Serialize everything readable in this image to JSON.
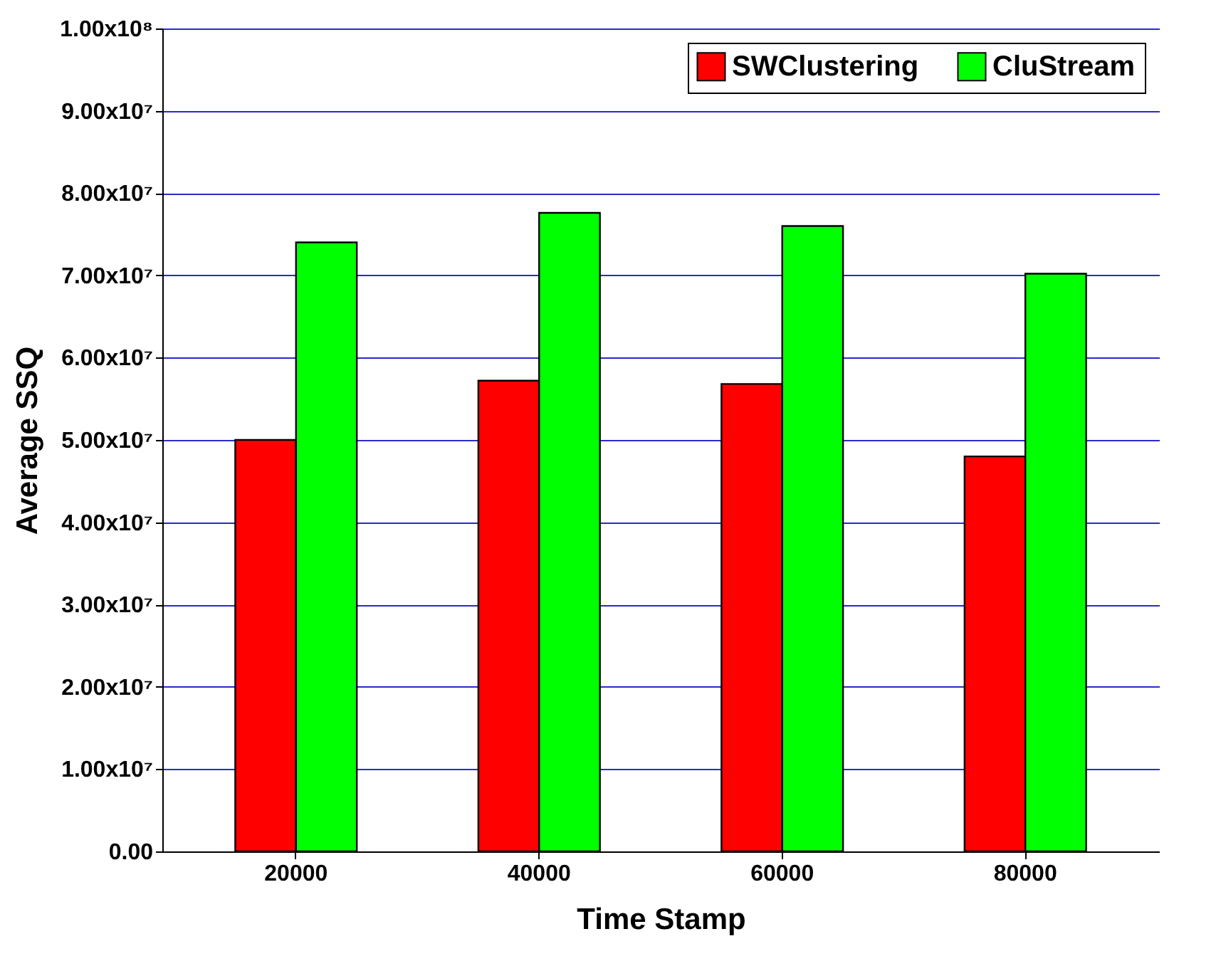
{
  "chart_data": {
    "type": "bar",
    "xlabel": "Time Stamp",
    "ylabel": "Average SSQ",
    "categories": [
      "20000",
      "40000",
      "60000",
      "80000"
    ],
    "series": [
      {
        "name": "SWClustering",
        "color": "#ff0000",
        "values": [
          50000000,
          57200000,
          56800000,
          48000000
        ]
      },
      {
        "name": "CluStream",
        "color": "#00ff00",
        "values": [
          74000000,
          77600000,
          76000000,
          70200000
        ]
      }
    ],
    "ylim": [
      0,
      100000000
    ],
    "yticks": [
      {
        "value": 0,
        "label": "0.00"
      },
      {
        "value": 10000000,
        "label": "1.00x10⁷"
      },
      {
        "value": 20000000,
        "label": "2.00x10⁷"
      },
      {
        "value": 30000000,
        "label": "3.00x10⁷"
      },
      {
        "value": 40000000,
        "label": "4.00x10⁷"
      },
      {
        "value": 50000000,
        "label": "5.00x10⁷"
      },
      {
        "value": 60000000,
        "label": "6.00x10⁷"
      },
      {
        "value": 70000000,
        "label": "7.00x10⁷"
      },
      {
        "value": 80000000,
        "label": "8.00x10⁷"
      },
      {
        "value": 90000000,
        "label": "9.00x10⁷"
      },
      {
        "value": 100000000,
        "label": "1.00x10⁸"
      }
    ],
    "grid": "y",
    "legend": "top right"
  }
}
